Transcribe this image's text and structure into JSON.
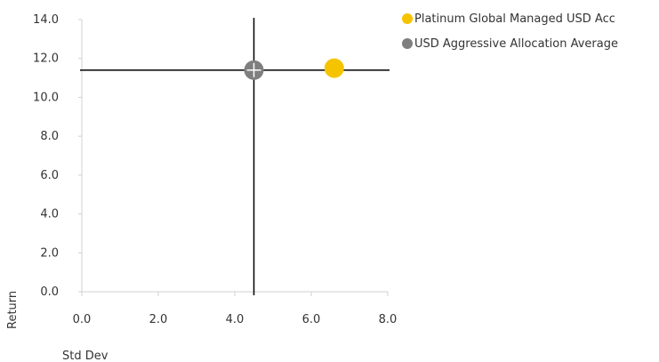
{
  "chart_data": {
    "type": "scatter",
    "xlabel": "Std Dev",
    "ylabel": "Return",
    "xlim": [
      0,
      8
    ],
    "ylim": [
      0,
      14
    ],
    "x_ticks": [
      "0.0",
      "2.0",
      "4.0",
      "6.0",
      "8.0"
    ],
    "y_ticks": [
      "0.0",
      "2.0",
      "4.0",
      "6.0",
      "8.0",
      "10.0",
      "12.0",
      "14.0"
    ],
    "grid": false,
    "legend_position": "top-right",
    "series": [
      {
        "name": "Platinum Global Managed USD Acc",
        "color": "#F5C400",
        "points": [
          {
            "x": 6.6,
            "y": 11.5
          }
        ]
      },
      {
        "name": "USD Aggressive Allocation Average",
        "color": "#7F7F7F",
        "points": [
          {
            "x": 4.5,
            "y": 11.4
          }
        ]
      }
    ],
    "crosshair": {
      "x": 4.5,
      "y": 11.4
    }
  }
}
